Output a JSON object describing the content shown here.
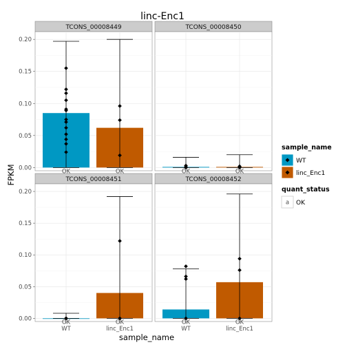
{
  "chart_data": {
    "type": "bar",
    "title": "linc-Enc1",
    "xlabel": "sample_name",
    "ylabel": "FPKM",
    "ylim": [
      -0.005,
      0.212
    ],
    "y_ticks": [
      "0.00",
      "0.05",
      "0.10",
      "0.15",
      "0.20"
    ],
    "categories": [
      "WT",
      "linc_Enc1"
    ],
    "series_colors": {
      "WT": "#0098C3",
      "linc_Enc1": "#C05A00"
    },
    "panels": [
      {
        "label": "TCONS_00008449",
        "bars": [
          {
            "sample": "WT",
            "value": 0.085,
            "err_low": 0.0,
            "err_high": 0.197,
            "status": "OK",
            "points": [
              0.155,
              0.122,
              0.116,
              0.105,
              0.091,
              0.089,
              0.075,
              0.071,
              0.062,
              0.052,
              0.044,
              0.037,
              0.024
            ]
          },
          {
            "sample": "linc_Enc1",
            "value": 0.062,
            "err_low": 0.0,
            "err_high": 0.2,
            "status": "OK",
            "points": [
              0.096,
              0.074,
              0.019
            ]
          }
        ]
      },
      {
        "label": "TCONS_00008450",
        "bars": [
          {
            "sample": "WT",
            "value": 0.001,
            "err_low": 0.0,
            "err_high": 0.016,
            "status": "OK",
            "points": [
              0.003,
              0.001,
              0.0
            ]
          },
          {
            "sample": "linc_Enc1",
            "value": 0.001,
            "err_low": 0.0,
            "err_high": 0.02,
            "status": "OK",
            "points": [
              0.002,
              0.001,
              0.0
            ]
          }
        ]
      },
      {
        "label": "TCONS_00008451",
        "bars": [
          {
            "sample": "WT",
            "value": 0.0,
            "err_low": 0.0,
            "err_high": 0.008,
            "status": "OK",
            "points": [
              0.0,
              0.0,
              0.0
            ]
          },
          {
            "sample": "linc_Enc1",
            "value": 0.04,
            "err_low": 0.0,
            "err_high": 0.192,
            "status": "OK",
            "points": [
              0.122,
              0.0,
              0.0
            ]
          }
        ]
      },
      {
        "label": "TCONS_00008452",
        "bars": [
          {
            "sample": "WT",
            "value": 0.014,
            "err_low": 0.0,
            "err_high": 0.078,
            "status": "OK",
            "points": [
              0.082,
              0.066,
              0.062,
              0.0
            ]
          },
          {
            "sample": "linc_Enc1",
            "value": 0.057,
            "err_low": 0.0,
            "err_high": 0.196,
            "status": "OK",
            "points": [
              0.094,
              0.076,
              0.0
            ]
          }
        ]
      }
    ],
    "legend": {
      "position": "right",
      "fill_title": "sample_name",
      "fill_entries": [
        {
          "label": "WT",
          "color": "#0098C3"
        },
        {
          "label": "linc_Enc1",
          "color": "#C05A00"
        }
      ],
      "shape_title": "quant_status",
      "shape_entries": [
        {
          "label": "OK",
          "key": "a"
        }
      ]
    },
    "grid": true
  }
}
